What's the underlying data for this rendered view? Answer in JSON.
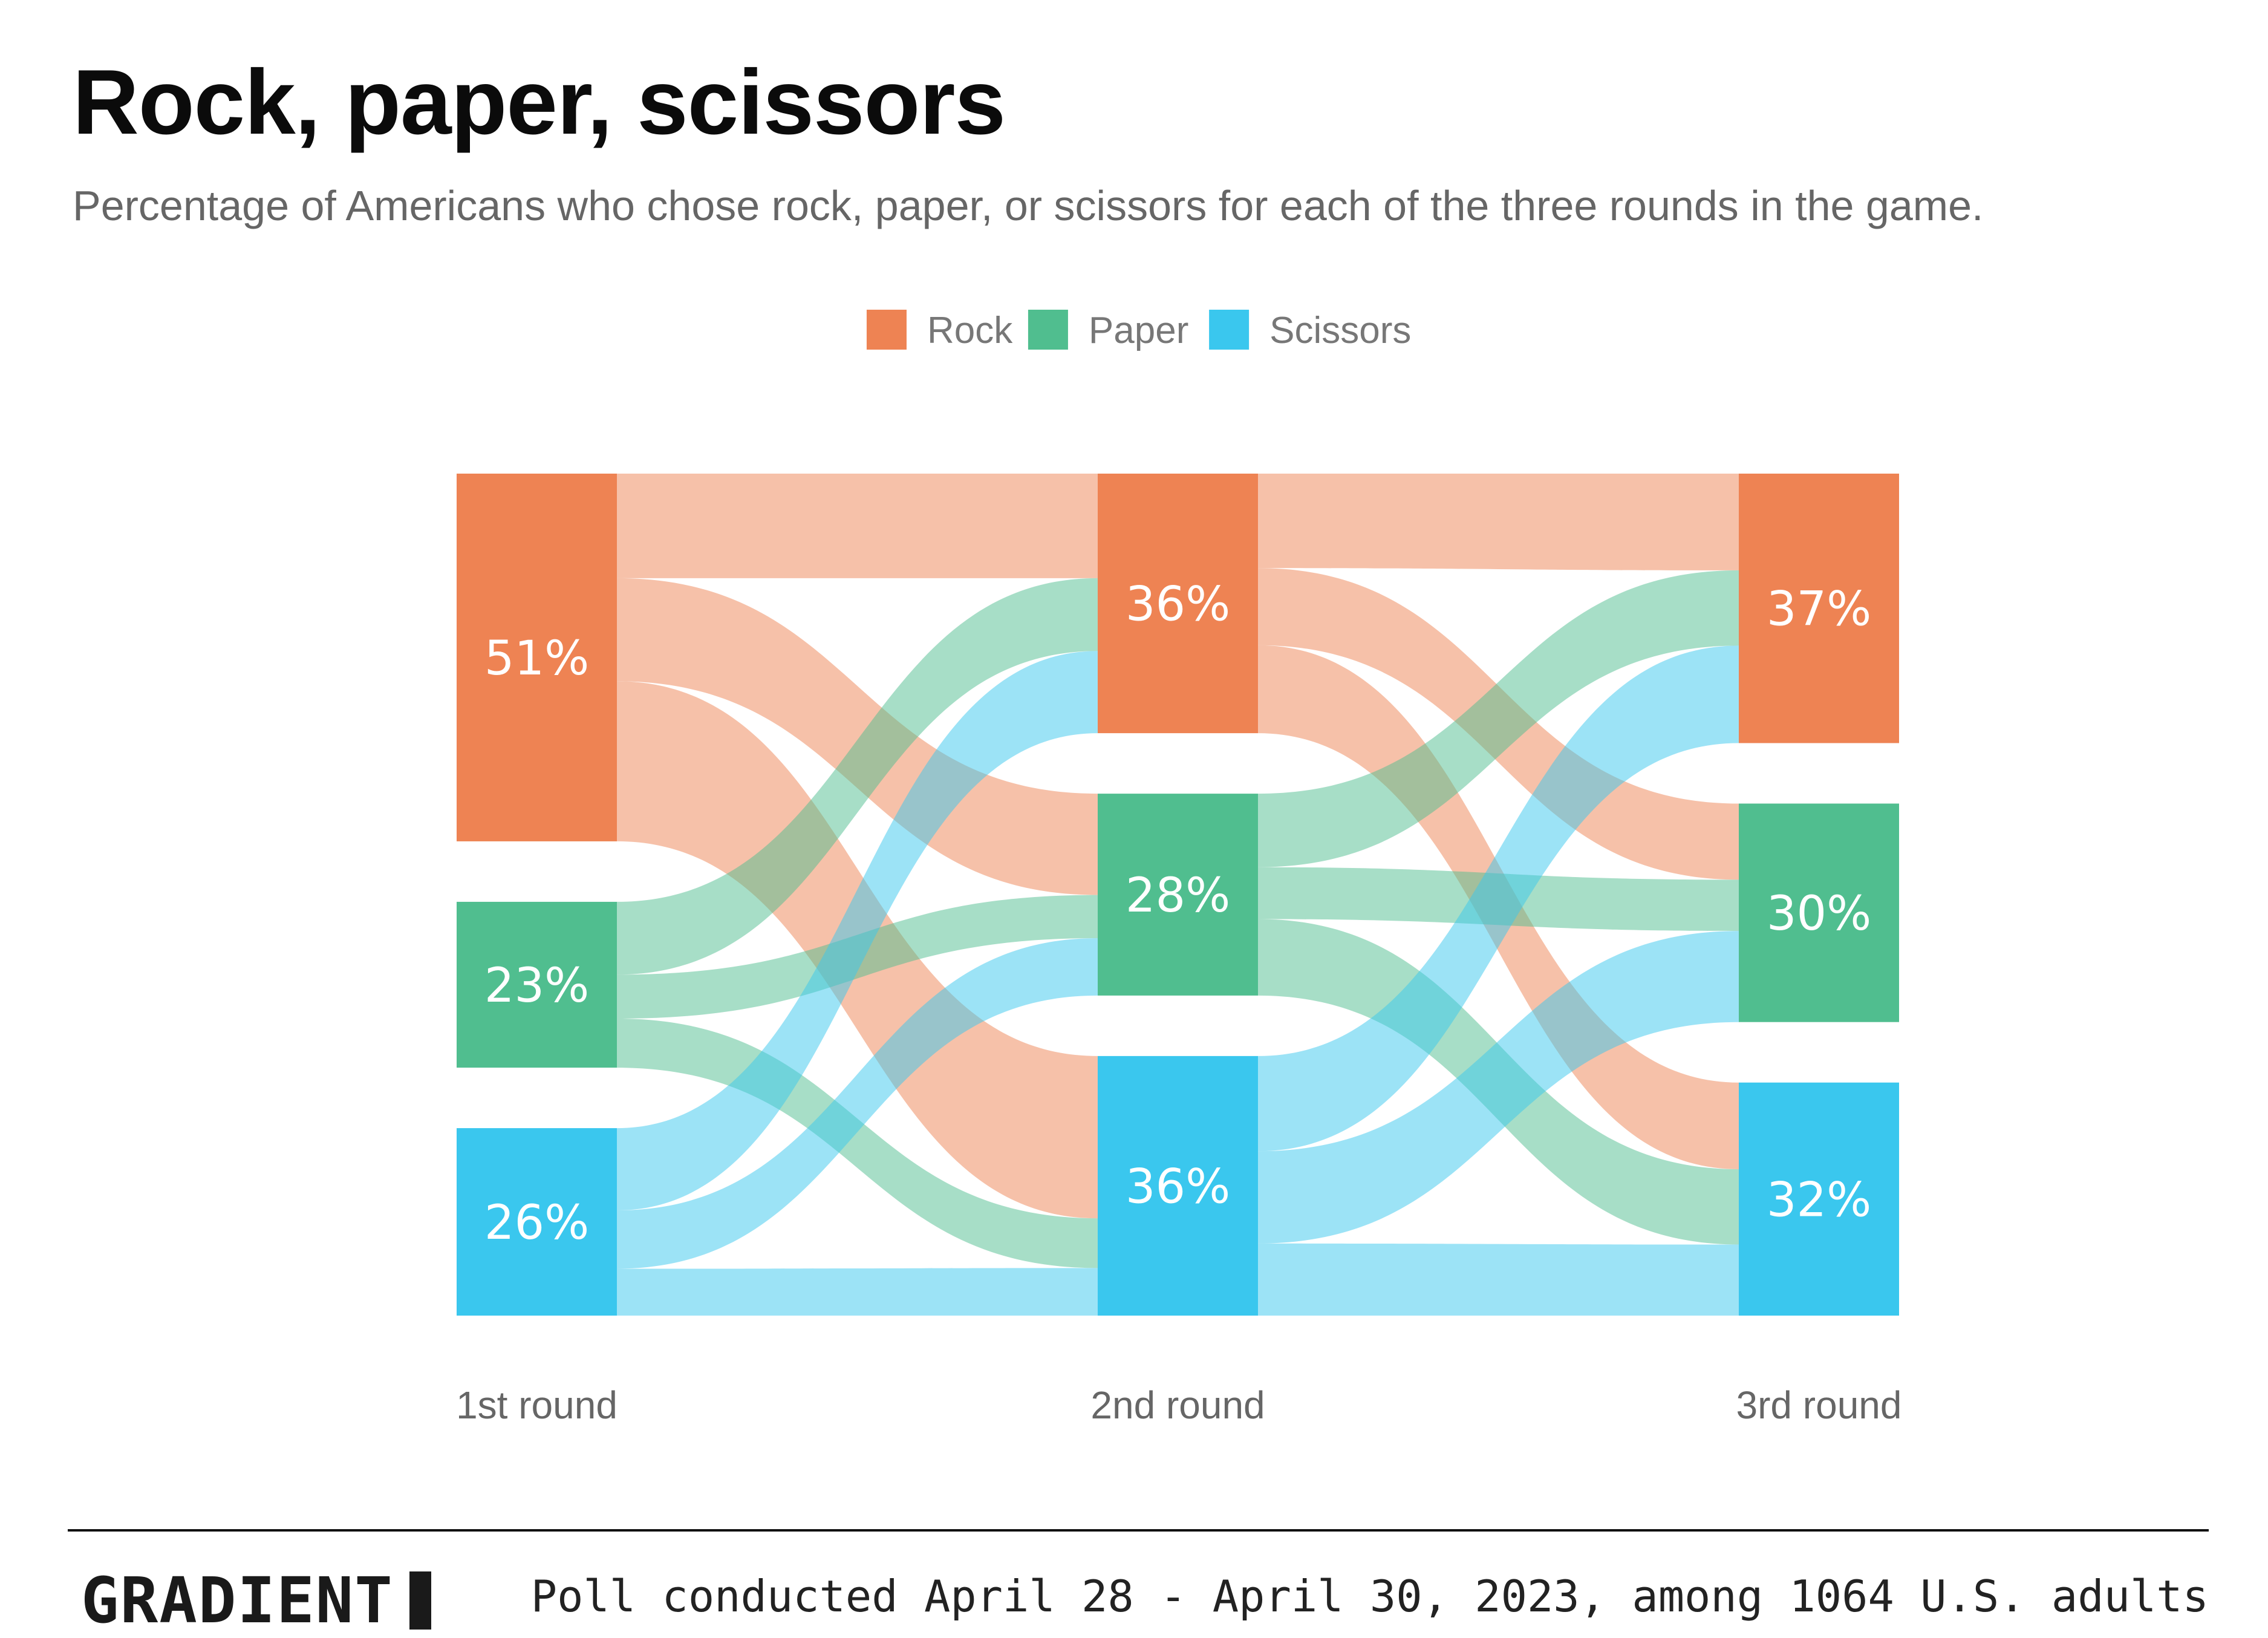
{
  "header": {
    "title": "Rock, paper, scissors",
    "subtitle": "Percentage of Americans who chose rock, paper, or scissors for each of the three rounds in the game."
  },
  "footer": {
    "brand": "GRADIENT",
    "note": "Poll conducted April 28 - April 30, 2023, among 1064 U.S. adults"
  },
  "chart_data": {
    "type": "sankey",
    "legend_position": "top-center",
    "categories": [
      {
        "key": "rock",
        "name": "Rock",
        "color": "#EE8353"
      },
      {
        "key": "paper",
        "name": "Paper",
        "color": "#50BE8F"
      },
      {
        "key": "scissors",
        "name": "Scissors",
        "color": "#3AC7EE"
      }
    ],
    "rounds": [
      {
        "label": "1st round",
        "values": {
          "rock": 51,
          "paper": 23,
          "scissors": 26
        },
        "labels": {
          "rock": "51%",
          "paper": "23%",
          "scissors": "26%"
        }
      },
      {
        "label": "2nd round",
        "values": {
          "rock": 36,
          "paper": 28,
          "scissors": 36
        },
        "labels": {
          "rock": "36%",
          "paper": "28%",
          "scissors": "36%"
        }
      },
      {
        "label": "3rd round",
        "values": {
          "rock": 37,
          "paper": 30,
          "scissors": 32
        },
        "labels": {
          "rock": "37%",
          "paper": "30%",
          "scissors": "32%"
        }
      }
    ],
    "flows": [
      [
        {
          "from": "rock",
          "to": "rock",
          "value": 14.5
        },
        {
          "from": "rock",
          "to": "paper",
          "value": 14.3
        },
        {
          "from": "rock",
          "to": "scissors",
          "value": 22.2
        },
        {
          "from": "paper",
          "to": "rock",
          "value": 10.1
        },
        {
          "from": "paper",
          "to": "paper",
          "value": 6.1
        },
        {
          "from": "paper",
          "to": "scissors",
          "value": 6.8
        },
        {
          "from": "scissors",
          "to": "rock",
          "value": 11.4
        },
        {
          "from": "scissors",
          "to": "paper",
          "value": 8.1
        },
        {
          "from": "scissors",
          "to": "scissors",
          "value": 6.5
        }
      ],
      [
        {
          "from": "rock",
          "to": "rock",
          "value": 13.1
        },
        {
          "from": "rock",
          "to": "paper",
          "value": 10.7
        },
        {
          "from": "rock",
          "to": "scissors",
          "value": 12.2
        },
        {
          "from": "paper",
          "to": "rock",
          "value": 10.2
        },
        {
          "from": "paper",
          "to": "paper",
          "value": 7.2
        },
        {
          "from": "paper",
          "to": "scissors",
          "value": 10.6
        },
        {
          "from": "scissors",
          "to": "rock",
          "value": 13.2
        },
        {
          "from": "scissors",
          "to": "paper",
          "value": 12.8
        },
        {
          "from": "scissors",
          "to": "scissors",
          "value": 10.0
        }
      ]
    ]
  }
}
